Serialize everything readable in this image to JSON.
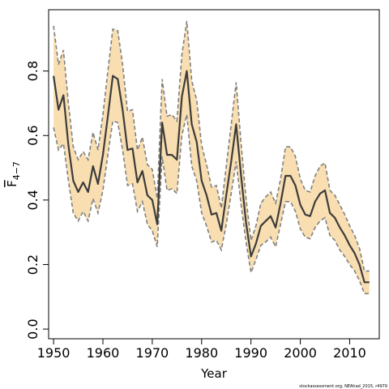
{
  "chart_data": {
    "type": "line",
    "xlabel": "Year",
    "ylabel": "F",
    "ylabel_subscript": "4−7",
    "xlim": [
      1949,
      2016
    ],
    "ylim": [
      -0.03,
      0.99
    ],
    "xticks": [
      1950,
      1960,
      1970,
      1980,
      1990,
      2000,
      2010
    ],
    "yticks": [
      "0.0",
      "0.2",
      "0.4",
      "0.6",
      "0.8"
    ],
    "ytick_values": [
      0.0,
      0.2,
      0.4,
      0.6,
      0.8
    ],
    "footnote": "stockassessment.org, NEAhad_2015, r4979",
    "colors": {
      "band": "#f8deb0",
      "line": "#3c3c3c",
      "band_edge": "#808080"
    },
    "series": [
      {
        "x": [
          1950,
          1951,
          1952,
          1953,
          1954,
          1955,
          1956,
          1957,
          1958,
          1959,
          1960,
          1961,
          1962,
          1963,
          1964,
          1965,
          1966,
          1967,
          1968,
          1969,
          1970,
          1971,
          1972,
          1973,
          1974,
          1975,
          1976,
          1977,
          1978,
          1979,
          1980,
          1981,
          1982,
          1983,
          1984,
          1985,
          1986,
          1987,
          1988,
          1989,
          1990,
          1991,
          1992,
          1993,
          1994,
          1995,
          1996,
          1997,
          1998,
          1999,
          2000,
          2001,
          2002,
          2003,
          2004,
          2005,
          2006,
          2007,
          2008,
          2009,
          2010,
          2011,
          2012,
          2013,
          2014
        ],
        "estimate": [
          0.785,
          0.68,
          0.725,
          0.57,
          0.46,
          0.425,
          0.455,
          0.425,
          0.505,
          0.45,
          0.54,
          0.66,
          0.785,
          0.775,
          0.68,
          0.555,
          0.56,
          0.455,
          0.49,
          0.415,
          0.4,
          0.325,
          0.64,
          0.54,
          0.54,
          0.525,
          0.72,
          0.8,
          0.635,
          0.58,
          0.46,
          0.415,
          0.355,
          0.36,
          0.305,
          0.415,
          0.52,
          0.635,
          0.475,
          0.33,
          0.225,
          0.265,
          0.32,
          0.335,
          0.35,
          0.315,
          0.39,
          0.475,
          0.475,
          0.445,
          0.385,
          0.355,
          0.35,
          0.395,
          0.42,
          0.43,
          0.36,
          0.345,
          0.315,
          0.29,
          0.26,
          0.235,
          0.2,
          0.145,
          0.145
        ],
        "lower": [
          0.625,
          0.555,
          0.575,
          0.46,
          0.36,
          0.335,
          0.365,
          0.335,
          0.405,
          0.36,
          0.43,
          0.54,
          0.645,
          0.64,
          0.555,
          0.445,
          0.45,
          0.365,
          0.395,
          0.325,
          0.305,
          0.255,
          0.535,
          0.43,
          0.435,
          0.42,
          0.6,
          0.665,
          0.505,
          0.46,
          0.36,
          0.32,
          0.27,
          0.275,
          0.245,
          0.325,
          0.42,
          0.52,
          0.385,
          0.27,
          0.175,
          0.215,
          0.26,
          0.27,
          0.285,
          0.255,
          0.325,
          0.395,
          0.395,
          0.365,
          0.31,
          0.285,
          0.28,
          0.315,
          0.335,
          0.345,
          0.29,
          0.275,
          0.245,
          0.225,
          0.2,
          0.18,
          0.15,
          0.11,
          0.11
        ],
        "upper": [
          0.94,
          0.82,
          0.865,
          0.7,
          0.565,
          0.525,
          0.55,
          0.525,
          0.61,
          0.555,
          0.665,
          0.8,
          0.93,
          0.925,
          0.82,
          0.675,
          0.68,
          0.555,
          0.595,
          0.51,
          0.495,
          0.405,
          0.775,
          0.66,
          0.665,
          0.645,
          0.85,
          0.955,
          0.77,
          0.71,
          0.57,
          0.51,
          0.44,
          0.445,
          0.375,
          0.505,
          0.635,
          0.765,
          0.575,
          0.405,
          0.275,
          0.32,
          0.39,
          0.41,
          0.425,
          0.39,
          0.465,
          0.565,
          0.565,
          0.535,
          0.465,
          0.43,
          0.425,
          0.475,
          0.505,
          0.515,
          0.43,
          0.415,
          0.385,
          0.355,
          0.32,
          0.29,
          0.25,
          0.18,
          0.18
        ]
      }
    ]
  }
}
